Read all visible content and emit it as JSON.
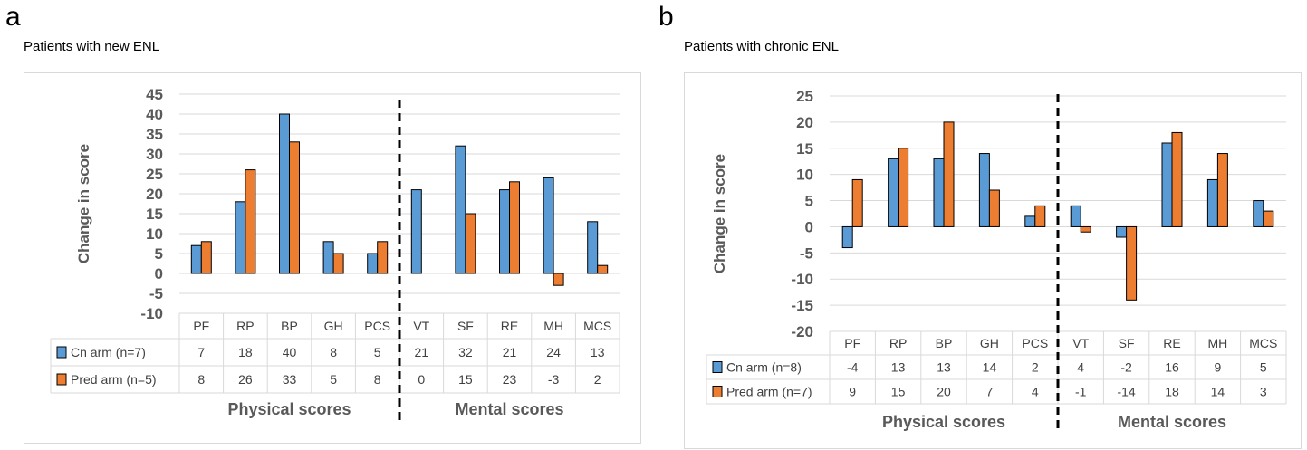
{
  "chart_data": [
    {
      "type": "bar",
      "panel_label": "a",
      "title": "Patients with new ENL",
      "ylabel": "Change in score",
      "ylim": [
        -10,
        45
      ],
      "yticks": [
        45,
        40,
        35,
        30,
        25,
        20,
        15,
        10,
        5,
        0,
        -5,
        -10
      ],
      "categories": [
        "PF",
        "RP",
        "BP",
        "GH",
        "PCS",
        "VT",
        "SF",
        "RE",
        "MH",
        "MCS"
      ],
      "series": [
        {
          "name": "Cn arm (n=7)",
          "color": "#5B9BD5",
          "values": [
            7,
            18,
            40,
            8,
            5,
            21,
            32,
            21,
            24,
            13
          ]
        },
        {
          "name": "Pred arm (n=5)",
          "color": "#ED7D31",
          "values": [
            8,
            26,
            33,
            5,
            8,
            0,
            15,
            23,
            -3,
            2
          ]
        }
      ],
      "group_labels": [
        "Physical scores",
        "Mental scores"
      ],
      "divider_after_index": 4,
      "grid": true,
      "legend": "data-table"
    },
    {
      "type": "bar",
      "panel_label": "b",
      "title": "Patients with chronic ENL",
      "ylabel": "Change in score",
      "ylim": [
        -20,
        25
      ],
      "yticks": [
        25,
        20,
        15,
        10,
        5,
        0,
        -5,
        -10,
        -15,
        -20
      ],
      "categories": [
        "PF",
        "RP",
        "BP",
        "GH",
        "PCS",
        "VT",
        "SF",
        "RE",
        "MH",
        "MCS"
      ],
      "series": [
        {
          "name": "Cn arm (n=8)",
          "color": "#5B9BD5",
          "values": [
            -4,
            13,
            13,
            14,
            2,
            4,
            -2,
            16,
            9,
            5
          ]
        },
        {
          "name": "Pred arm (n=7)",
          "color": "#ED7D31",
          "values": [
            9,
            15,
            20,
            7,
            4,
            -1,
            -14,
            18,
            14,
            3
          ]
        }
      ],
      "group_labels": [
        "Physical scores",
        "Mental scores"
      ],
      "divider_after_index": 4,
      "grid": true,
      "legend": "data-table"
    }
  ]
}
